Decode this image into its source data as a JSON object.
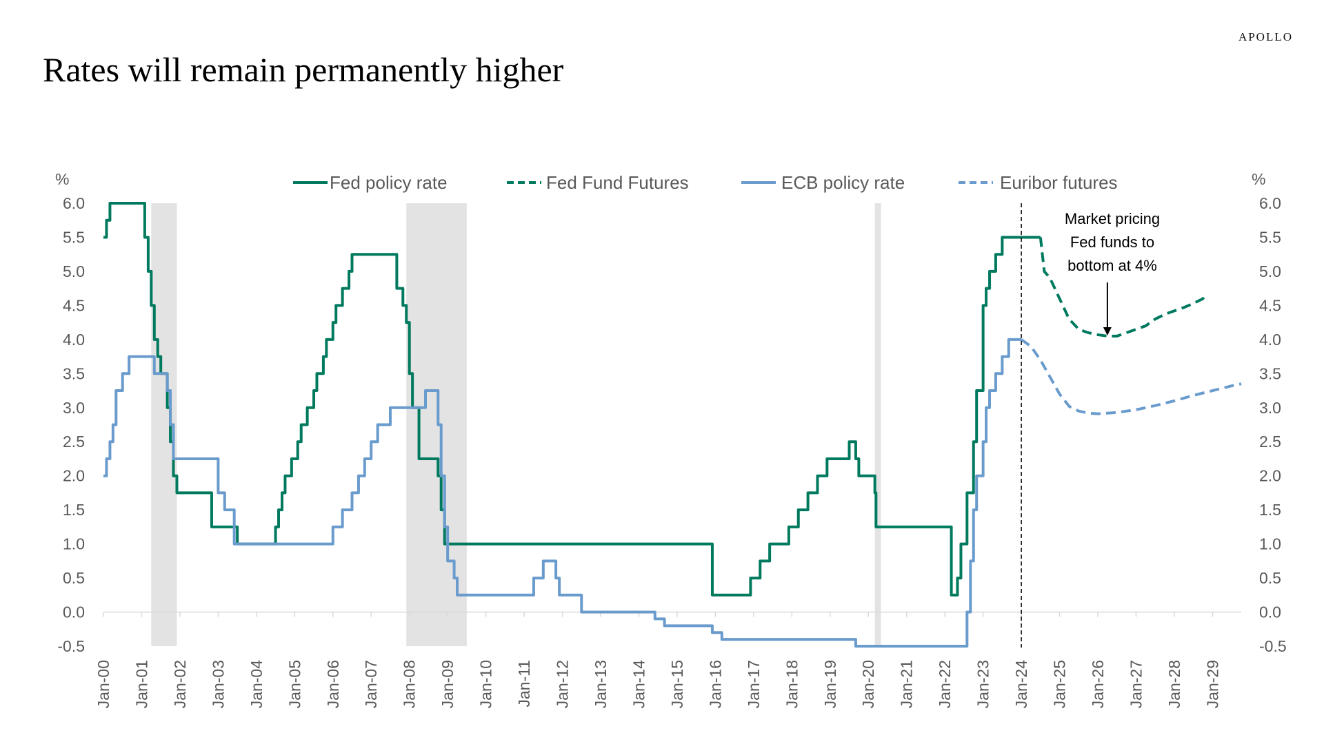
{
  "brand": "APOLLO",
  "title": "Rates will remain permanently higher",
  "colors": {
    "fed": "#007A5E",
    "ecb": "#6A9BCD",
    "recession": "#E3E3E3",
    "axis": "#D9D9D9",
    "tick": "#595959"
  },
  "chart_data": {
    "type": "line",
    "title": "Rates will remain permanently higher",
    "ylabel_left": "%",
    "ylabel_right": "%",
    "ylim": [
      -0.5,
      6.0
    ],
    "yticks": [
      "6.0",
      "5.5",
      "5.0",
      "4.5",
      "4.0",
      "3.5",
      "3.0",
      "2.5",
      "2.0",
      "1.5",
      "1.0",
      "0.5",
      "0.0",
      "-0.5"
    ],
    "ytick_values": [
      6.0,
      5.5,
      5.0,
      4.5,
      4.0,
      3.5,
      3.0,
      2.5,
      2.0,
      1.5,
      1.0,
      0.5,
      0.0,
      -0.5
    ],
    "xlim": [
      2000.0,
      2029.75
    ],
    "xticks": [
      "Jan-00",
      "Jan-01",
      "Jan-02",
      "Jan-03",
      "Jan-04",
      "Jan-05",
      "Jan-06",
      "Jan-07",
      "Jan-08",
      "Jan-09",
      "Jan-10",
      "Jan-11",
      "Jan-12",
      "Jan-13",
      "Jan-14",
      "Jan-15",
      "Jan-16",
      "Jan-17",
      "Jan-18",
      "Jan-19",
      "Jan-20",
      "Jan-21",
      "Jan-22",
      "Jan-23",
      "Jan-24",
      "Jan-25",
      "Jan-26",
      "Jan-27",
      "Jan-28",
      "Jan-29"
    ],
    "grid": false,
    "legend_position": "top",
    "recessions": [
      [
        2001.25,
        2001.92
      ],
      [
        2007.92,
        2009.5
      ],
      [
        2020.17,
        2020.33
      ]
    ],
    "vline": {
      "x": 2024.0,
      "style": "dashed"
    },
    "annotation": {
      "text": [
        "Market pricing",
        "Fed funds to",
        "bottom at 4%"
      ],
      "arrow_to": [
        2026.25,
        4.2
      ]
    },
    "series": [
      {
        "name": "Fed policy rate",
        "style": "solid",
        "color": "#007A5E",
        "x": [
          2000.0,
          2000.08,
          2000.17,
          2000.33,
          2001.0,
          2001.08,
          2001.17,
          2001.25,
          2001.33,
          2001.42,
          2001.5,
          2001.67,
          2001.75,
          2001.83,
          2001.92,
          2002.83,
          2003.5,
          2004.5,
          2004.58,
          2004.67,
          2004.75,
          2004.92,
          2005.08,
          2005.17,
          2005.33,
          2005.5,
          2005.58,
          2005.75,
          2005.83,
          2006.0,
          2006.08,
          2006.25,
          2006.42,
          2006.5,
          2007.67,
          2007.83,
          2007.92,
          2008.0,
          2008.08,
          2008.25,
          2008.75,
          2008.83,
          2008.92,
          2015.92,
          2016.92,
          2017.17,
          2017.42,
          2017.92,
          2018.17,
          2018.42,
          2018.67,
          2018.92,
          2019.5,
          2019.67,
          2019.75,
          2020.17,
          2020.2,
          2022.17,
          2022.33,
          2022.42,
          2022.58,
          2022.75,
          2022.83,
          2023.0,
          2023.08,
          2023.17,
          2023.33,
          2023.5
        ],
        "values": [
          5.5,
          5.75,
          6.0,
          6.5,
          6.0,
          5.5,
          5.0,
          4.5,
          4.0,
          3.75,
          3.5,
          3.0,
          2.5,
          2.0,
          1.75,
          1.25,
          1.0,
          1.25,
          1.5,
          1.75,
          2.0,
          2.25,
          2.5,
          2.75,
          3.0,
          3.25,
          3.5,
          3.75,
          4.0,
          4.25,
          4.5,
          4.75,
          5.0,
          5.25,
          4.75,
          4.5,
          4.25,
          3.5,
          3.0,
          2.25,
          2.0,
          1.5,
          1.0,
          0.25,
          0.5,
          0.75,
          1.0,
          1.25,
          1.5,
          1.75,
          2.0,
          2.25,
          2.5,
          2.25,
          2.0,
          1.75,
          1.25,
          0.25,
          0.5,
          1.0,
          1.75,
          2.5,
          3.25,
          4.5,
          4.75,
          5.0,
          5.25,
          5.5
        ]
      },
      {
        "name": "Fed Fund Futures",
        "style": "dashed",
        "color": "#007A5E",
        "x": [
          2024.5,
          2024.6,
          2024.75,
          2025.0,
          2025.25,
          2025.5,
          2025.75,
          2026.0,
          2026.25,
          2026.5,
          2026.75,
          2027.0,
          2027.25,
          2027.5,
          2027.75,
          2028.0,
          2028.25,
          2028.5,
          2028.75,
          2028.8
        ],
        "values": [
          5.5,
          5.0,
          4.9,
          4.6,
          4.3,
          4.15,
          4.1,
          4.07,
          4.05,
          4.05,
          4.1,
          4.15,
          4.2,
          4.3,
          4.37,
          4.42,
          4.47,
          4.53,
          4.6,
          4.67
        ]
      },
      {
        "name": "ECB policy rate",
        "style": "solid",
        "color": "#6A9BCD",
        "x": [
          2000.0,
          2000.08,
          2000.17,
          2000.25,
          2000.33,
          2000.5,
          2000.67,
          2000.83,
          2001.33,
          2001.67,
          2001.75,
          2001.83,
          2003.0,
          2003.17,
          2003.42,
          2006.0,
          2006.25,
          2006.5,
          2006.67,
          2006.83,
          2007.0,
          2007.17,
          2007.5,
          2008.42,
          2008.75,
          2008.83,
          2008.92,
          2009.0,
          2009.17,
          2009.25,
          2009.33,
          2011.25,
          2011.5,
          2011.83,
          2011.92,
          2012.5,
          2014.42,
          2014.67,
          2015.92,
          2016.17,
          2019.67,
          2022.5,
          2022.58,
          2022.67,
          2022.75,
          2022.83,
          2023.0,
          2023.08,
          2023.17,
          2023.33,
          2023.5,
          2023.67
        ],
        "values": [
          2.0,
          2.25,
          2.5,
          2.75,
          3.25,
          3.5,
          3.75,
          3.75,
          3.5,
          3.25,
          2.75,
          2.25,
          1.75,
          1.5,
          1.0,
          1.25,
          1.5,
          1.75,
          2.0,
          2.25,
          2.5,
          2.75,
          3.0,
          3.25,
          2.75,
          2.0,
          1.25,
          0.75,
          0.5,
          0.25,
          0.25,
          0.5,
          0.75,
          0.5,
          0.25,
          0.0,
          -0.1,
          -0.2,
          -0.3,
          -0.4,
          -0.5,
          -0.5,
          0.0,
          0.75,
          1.5,
          2.0,
          2.5,
          3.0,
          3.25,
          3.5,
          3.75,
          4.0
        ]
      },
      {
        "name": "Euribor futures",
        "style": "dashed",
        "color": "#6A9BCD",
        "x": [
          2024.0,
          2024.25,
          2024.5,
          2024.75,
          2025.0,
          2025.25,
          2025.5,
          2025.75,
          2026.0,
          2026.5,
          2027.0,
          2027.5,
          2028.0,
          2028.5,
          2029.0,
          2029.5,
          2029.75
        ],
        "values": [
          4.0,
          3.9,
          3.7,
          3.45,
          3.2,
          3.02,
          2.95,
          2.92,
          2.91,
          2.93,
          2.97,
          3.03,
          3.1,
          3.18,
          3.25,
          3.32,
          3.35
        ]
      }
    ]
  }
}
